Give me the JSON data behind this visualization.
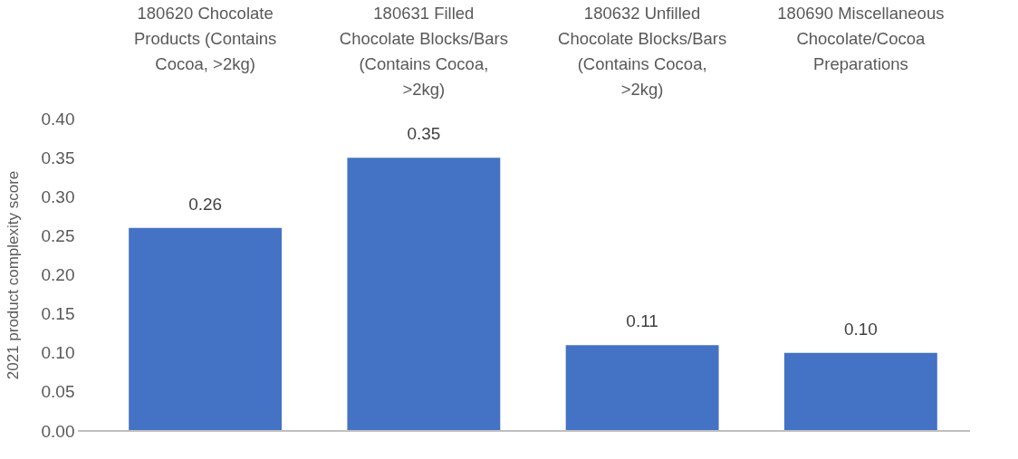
{
  "chart_data": {
    "type": "bar",
    "ylabel": "2021 product complexity score",
    "categories": [
      "180620 Chocolate Products (Contains Cocoa, >2kg)",
      "180631 Filled Chocolate Blocks/Bars (Contains Cocoa, >2kg)",
      "180632 Unfilled Chocolate Blocks/Bars (Contains Cocoa, >2kg)",
      "180690 Miscellaneous Chocolate/Cocoa Preparations"
    ],
    "values": [
      0.26,
      0.35,
      0.11,
      0.1
    ],
    "color": "#4472c4",
    "ylim": [
      0,
      0.4
    ],
    "yticks": [
      {
        "value": 0,
        "label": "0.00"
      },
      {
        "value": 0.05,
        "label": "0.05"
      },
      {
        "value": 0.1,
        "label": "0.10"
      },
      {
        "value": 0.15,
        "label": "0.15"
      },
      {
        "value": 0.2,
        "label": "0.20"
      },
      {
        "value": 0.25,
        "label": "0.25"
      },
      {
        "value": 0.3,
        "label": "0.30"
      },
      {
        "value": 0.35,
        "label": "0.35"
      },
      {
        "value": 0.4,
        "label": "0.40"
      }
    ],
    "grid": false,
    "value_labels": [
      "0.26",
      "0.35",
      "0.11",
      "0.10"
    ]
  }
}
